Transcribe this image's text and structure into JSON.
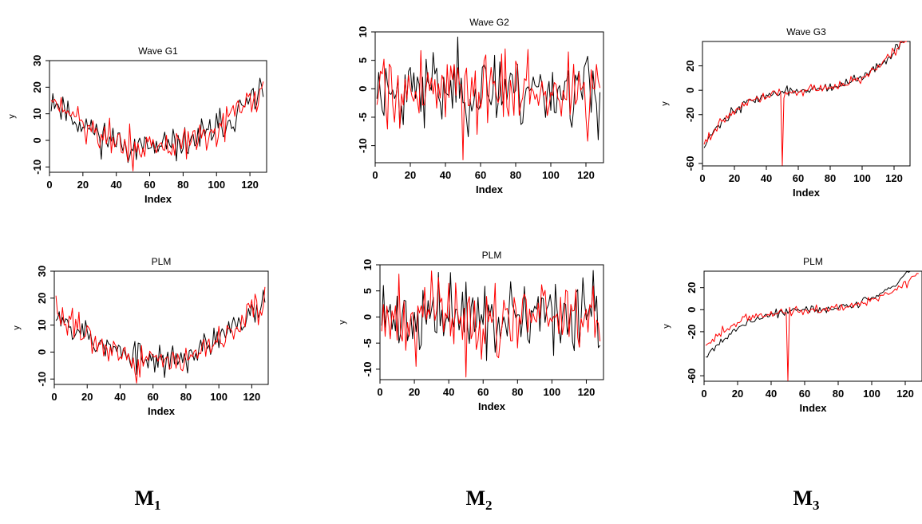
{
  "colors": {
    "series_black": "#000000",
    "series_red": "#ff0000",
    "axis": "#000000"
  },
  "captions": [
    {
      "letter": "M",
      "sub": "1"
    },
    {
      "letter": "M",
      "sub": "2"
    },
    {
      "letter": "M",
      "sub": "3"
    }
  ],
  "chart_data": [
    {
      "type": "line",
      "title": "Wave G1",
      "xlabel": "Index",
      "ylabel": "y",
      "xlim": [
        0,
        130
      ],
      "ylim": [
        -12,
        30
      ],
      "xticks": [
        0,
        20,
        40,
        60,
        80,
        100,
        120
      ],
      "yticks": [
        -10,
        0,
        10,
        20,
        30
      ],
      "shape": "ushape",
      "seed": 11,
      "series": [
        {
          "color": "black"
        },
        {
          "color": "red"
        }
      ]
    },
    {
      "type": "line",
      "title": "Wave G2",
      "xlabel": "Index",
      "ylabel": "",
      "xlim": [
        0,
        130
      ],
      "ylim": [
        -13,
        10
      ],
      "xticks": [
        0,
        20,
        40,
        60,
        80,
        100,
        120
      ],
      "yticks": [
        -10,
        -5,
        0,
        5,
        10
      ],
      "shape": "noise",
      "seed": 23,
      "series": [
        {
          "color": "black"
        },
        {
          "color": "red"
        }
      ]
    },
    {
      "type": "line",
      "title": "Wave G3",
      "xlabel": "Index",
      "ylabel": "y",
      "xlim": [
        0,
        130
      ],
      "ylim": [
        -62,
        40
      ],
      "xticks": [
        0,
        20,
        40,
        60,
        80,
        100,
        120
      ],
      "yticks": [
        -60,
        -20,
        0,
        20
      ],
      "shape": "cubic",
      "seed": 37,
      "series": [
        {
          "color": "black"
        },
        {
          "color": "red"
        }
      ]
    },
    {
      "type": "line",
      "title": "PLM",
      "xlabel": "Index",
      "ylabel": "y",
      "xlim": [
        0,
        130
      ],
      "ylim": [
        -12,
        30
      ],
      "xticks": [
        0,
        20,
        40,
        60,
        80,
        100,
        120
      ],
      "yticks": [
        -10,
        0,
        10,
        20,
        30
      ],
      "shape": "ushape",
      "seed": 53,
      "series": [
        {
          "color": "black"
        },
        {
          "color": "red"
        }
      ]
    },
    {
      "type": "line",
      "title": "PLM",
      "xlabel": "Index",
      "ylabel": "y",
      "xlim": [
        0,
        130
      ],
      "ylim": [
        -12,
        10
      ],
      "xticks": [
        0,
        20,
        40,
        60,
        80,
        100,
        120
      ],
      "yticks": [
        -10,
        -5,
        0,
        5,
        10
      ],
      "shape": "noise",
      "seed": 71,
      "series": [
        {
          "color": "black"
        },
        {
          "color": "red"
        }
      ]
    },
    {
      "type": "line",
      "title": "PLM",
      "xlabel": "Index",
      "ylabel": "y",
      "xlim": [
        0,
        130
      ],
      "ylim": [
        -65,
        35
      ],
      "xticks": [
        0,
        20,
        40,
        60,
        80,
        100,
        120
      ],
      "yticks": [
        -60,
        -20,
        0,
        20
      ],
      "shape": "cubic_smooth",
      "seed": 89,
      "series": [
        {
          "color": "black"
        },
        {
          "color": "red"
        }
      ]
    }
  ]
}
